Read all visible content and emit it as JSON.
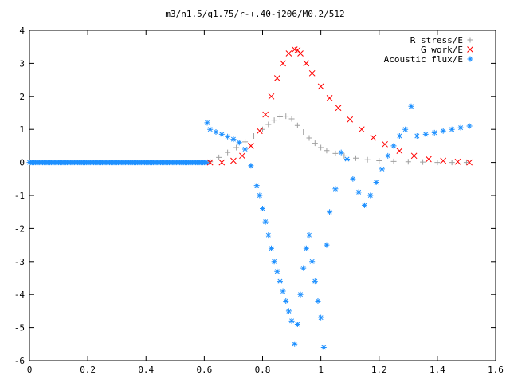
{
  "chart_data": {
    "type": "scatter",
    "title": "m3/n1.5/q1.75/r-+.40-j206/M0.2/512",
    "xlabel": "",
    "ylabel": "",
    "xlim": [
      0,
      1.6
    ],
    "ylim": [
      -6,
      4
    ],
    "xticks": [
      "0",
      "0.2",
      "0.4",
      "0.6",
      "0.8",
      "1",
      "1.2",
      "1.4",
      "1.6"
    ],
    "yticks": [
      "4",
      "3",
      "2",
      "1",
      "0",
      "-1",
      "-2",
      "-3",
      "-4",
      "-5",
      "-6"
    ],
    "grid": false,
    "legend_position": "top-right",
    "series": [
      {
        "name": "R stress/E",
        "marker": "+",
        "color": "#a0a0a0",
        "x": [
          0.62,
          0.65,
          0.68,
          0.71,
          0.74,
          0.77,
          0.8,
          0.82,
          0.84,
          0.86,
          0.88,
          0.9,
          0.92,
          0.94,
          0.96,
          0.98,
          1.0,
          1.02,
          1.05,
          1.08,
          1.12,
          1.16,
          1.2,
          1.25,
          1.3,
          1.35,
          1.4,
          1.45,
          1.5
        ],
        "y": [
          0.02,
          0.15,
          0.3,
          0.45,
          0.62,
          0.8,
          1.0,
          1.15,
          1.28,
          1.38,
          1.4,
          1.32,
          1.12,
          0.92,
          0.74,
          0.58,
          0.45,
          0.36,
          0.27,
          0.2,
          0.13,
          0.08,
          0.05,
          0.03,
          0.02,
          0.01,
          0.0,
          0.0,
          0.0
        ]
      },
      {
        "name": "G work/E",
        "marker": "x",
        "color": "#ff0000",
        "x": [
          0.62,
          0.66,
          0.7,
          0.73,
          0.76,
          0.79,
          0.81,
          0.83,
          0.85,
          0.87,
          0.89,
          0.91,
          0.92,
          0.93,
          0.95,
          0.97,
          1.0,
          1.03,
          1.06,
          1.1,
          1.14,
          1.18,
          1.22,
          1.27,
          1.32,
          1.37,
          1.42,
          1.47,
          1.51
        ],
        "y": [
          0.0,
          0.0,
          0.05,
          0.2,
          0.5,
          0.95,
          1.45,
          2.0,
          2.55,
          3.0,
          3.3,
          3.42,
          3.4,
          3.3,
          3.0,
          2.7,
          2.3,
          1.95,
          1.65,
          1.3,
          1.0,
          0.75,
          0.55,
          0.35,
          0.2,
          0.1,
          0.05,
          0.02,
          0.0
        ]
      },
      {
        "name": "Acoustic flux/E",
        "marker": "*",
        "color": "#1e90ff",
        "x": [
          0.61,
          0.62,
          0.64,
          0.66,
          0.68,
          0.7,
          0.72,
          0.74,
          0.76,
          0.78,
          0.79,
          0.8,
          0.81,
          0.82,
          0.83,
          0.84,
          0.85,
          0.86,
          0.87,
          0.88,
          0.89,
          0.9,
          0.91,
          0.92,
          0.93,
          0.94,
          0.95,
          0.96,
          0.97,
          0.98,
          0.99,
          1.0,
          1.01,
          1.02,
          1.03,
          1.05,
          1.07,
          1.09,
          1.11,
          1.13,
          1.15,
          1.17,
          1.19,
          1.21,
          1.23,
          1.25,
          1.27,
          1.29,
          1.31,
          1.33,
          1.36,
          1.39,
          1.42,
          1.45,
          1.48,
          1.51
        ],
        "y": [
          1.2,
          1.0,
          0.92,
          0.85,
          0.78,
          0.7,
          0.6,
          0.4,
          -0.1,
          -0.7,
          -1.0,
          -1.4,
          -1.8,
          -2.2,
          -2.6,
          -3.0,
          -3.3,
          -3.6,
          -3.9,
          -4.2,
          -4.5,
          -4.8,
          -5.5,
          -4.9,
          -4.0,
          -3.2,
          -2.6,
          -2.2,
          -3.0,
          -3.6,
          -4.2,
          -4.7,
          -5.6,
          -2.5,
          -1.5,
          -0.8,
          0.3,
          0.1,
          -0.5,
          -0.9,
          -1.3,
          -1.0,
          -0.6,
          -0.2,
          0.2,
          0.5,
          0.8,
          1.0,
          1.7,
          0.8,
          0.85,
          0.9,
          0.95,
          1.0,
          1.05,
          1.1
        ]
      }
    ],
    "baseline_left": {
      "series": "Acoustic flux/E",
      "x_range": [
        0,
        0.61
      ],
      "y": 0
    }
  }
}
